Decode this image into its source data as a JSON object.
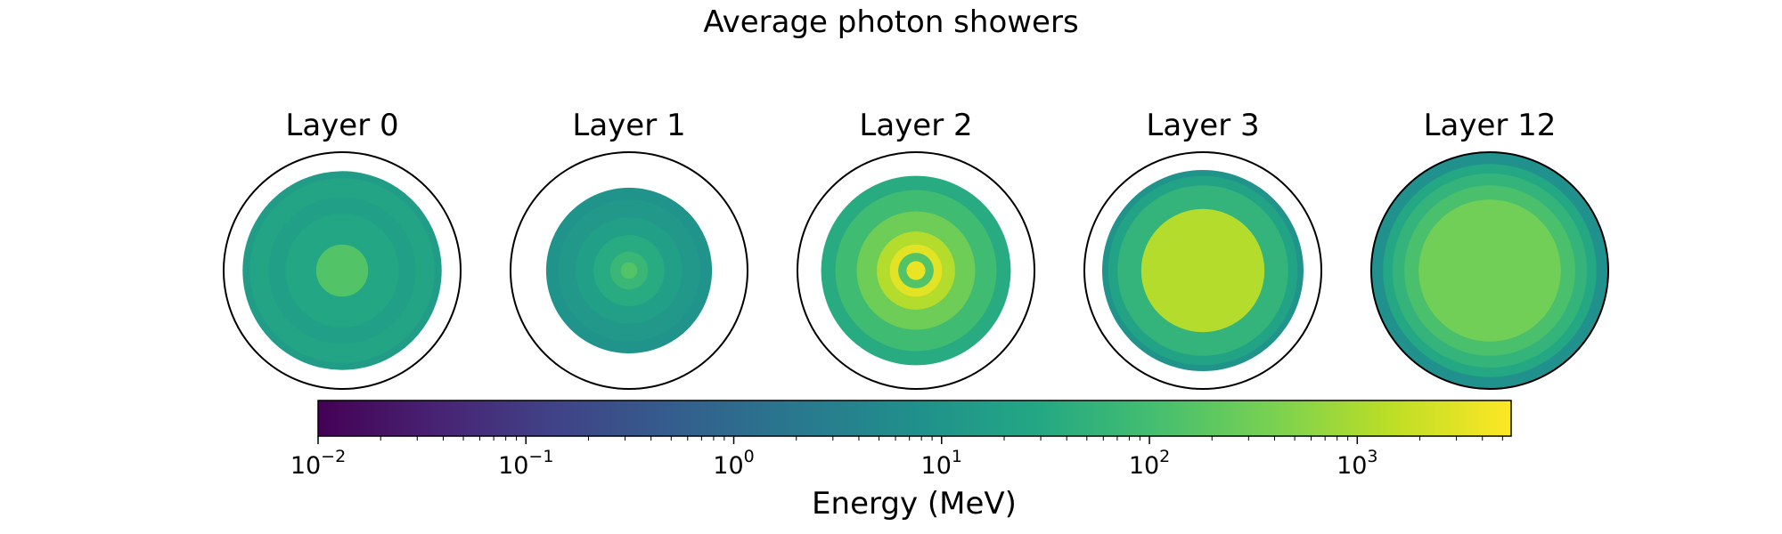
{
  "chart_data": {
    "type": "heatmap",
    "title": "Average photon showers",
    "colormap": "viridis",
    "colorbar": {
      "label": "Energy (MeV)",
      "scale": "log",
      "range": [
        0.01,
        5500
      ],
      "tick_labels": [
        {
          "base": "10",
          "exp": "−2",
          "value": 0.01
        },
        {
          "base": "10",
          "exp": "−1",
          "value": 0.1
        },
        {
          "base": "10",
          "exp": "0",
          "value": 1
        },
        {
          "base": "10",
          "exp": "1",
          "value": 10
        },
        {
          "base": "10",
          "exp": "2",
          "value": 100
        },
        {
          "base": "10",
          "exp": "3",
          "value": 1000
        }
      ]
    },
    "panels": [
      {
        "title": "Layer 0",
        "rings": [
          {
            "r": 1.0,
            "e": 0
          },
          {
            "r": 0.84,
            "e": 16
          },
          {
            "r": 0.78,
            "e": 24
          },
          {
            "r": 0.62,
            "e": 18
          },
          {
            "r": 0.48,
            "e": 26
          },
          {
            "r": 0.22,
            "e": 150
          }
        ]
      },
      {
        "title": "Layer 1",
        "rings": [
          {
            "r": 1.0,
            "e": 0
          },
          {
            "r": 0.7,
            "e": 9
          },
          {
            "r": 0.6,
            "e": 12
          },
          {
            "r": 0.45,
            "e": 18
          },
          {
            "r": 0.3,
            "e": 35
          },
          {
            "r": 0.16,
            "e": 70
          },
          {
            "r": 0.07,
            "e": 150
          }
        ]
      },
      {
        "title": "Layer 2",
        "rings": [
          {
            "r": 1.0,
            "e": 0
          },
          {
            "r": 0.8,
            "e": 35
          },
          {
            "r": 0.68,
            "e": 90
          },
          {
            "r": 0.5,
            "e": 300
          },
          {
            "r": 0.33,
            "e": 1200
          },
          {
            "r": 0.22,
            "e": 3200
          },
          {
            "r": 0.15,
            "e": 150
          },
          {
            "r": 0.08,
            "e": 3800
          }
        ]
      },
      {
        "title": "Layer 3",
        "rings": [
          {
            "r": 1.0,
            "e": 0
          },
          {
            "r": 0.85,
            "e": 9
          },
          {
            "r": 0.8,
            "e": 22
          },
          {
            "r": 0.72,
            "e": 55
          },
          {
            "r": 0.52,
            "e": 1200
          }
        ]
      },
      {
        "title": "Layer 12",
        "rings": [
          {
            "r": 1.0,
            "e": 8
          },
          {
            "r": 0.9,
            "e": 30
          },
          {
            "r": 0.82,
            "e": 55
          },
          {
            "r": 0.72,
            "e": 120
          },
          {
            "r": 0.6,
            "e": 320
          }
        ]
      }
    ]
  }
}
